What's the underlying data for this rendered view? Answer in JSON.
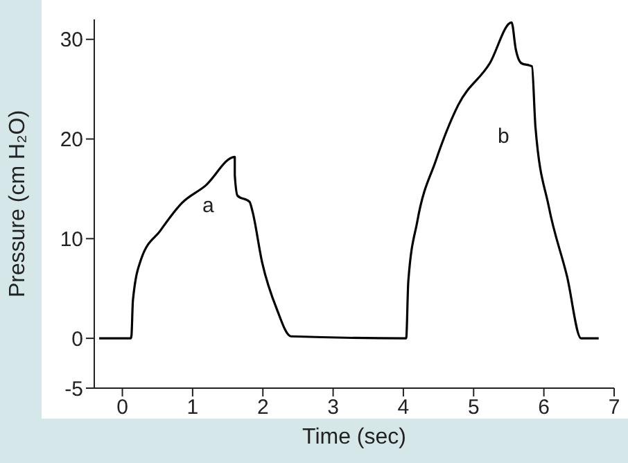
{
  "chart_data": {
    "type": "line",
    "xlabel": "Time (sec)",
    "ylabel": "Pressure (cm H₂O)",
    "x": [
      -0.33,
      0.12,
      0.13,
      0.15,
      0.27,
      0.54,
      0.85,
      1.18,
      1.6,
      1.6,
      1.64,
      1.81,
      1.85,
      1.99,
      2.2,
      2.4,
      4.04,
      4.07,
      4.2,
      4.46,
      4.78,
      5.23,
      5.54,
      5.6,
      5.68,
      5.83,
      5.88,
      6.07,
      6.33,
      6.53,
      6.78
    ],
    "series": [
      {
        "color": "#000000",
        "values": [
          0,
          0,
          0.3,
          3.8,
          8,
          10.8,
          13.6,
          15.3,
          18.2,
          16.4,
          14.3,
          13.7,
          12.8,
          7.6,
          2.9,
          0.2,
          0,
          5.7,
          11.8,
          17.8,
          23.4,
          27.6,
          31.7,
          29,
          27.6,
          27.3,
          21.2,
          13.2,
          6.2,
          0,
          0
        ]
      }
    ],
    "xlim": [
      -0.4,
      7
    ],
    "xticks": [
      0,
      1,
      2,
      3,
      4,
      5,
      6,
      7
    ],
    "ylim": [
      -5,
      32
    ],
    "yticks": [
      -5,
      0,
      10,
      20,
      30
    ],
    "grid": false,
    "marker": "none",
    "line_style": "solid",
    "annotations": [
      "a",
      "b"
    ]
  }
}
